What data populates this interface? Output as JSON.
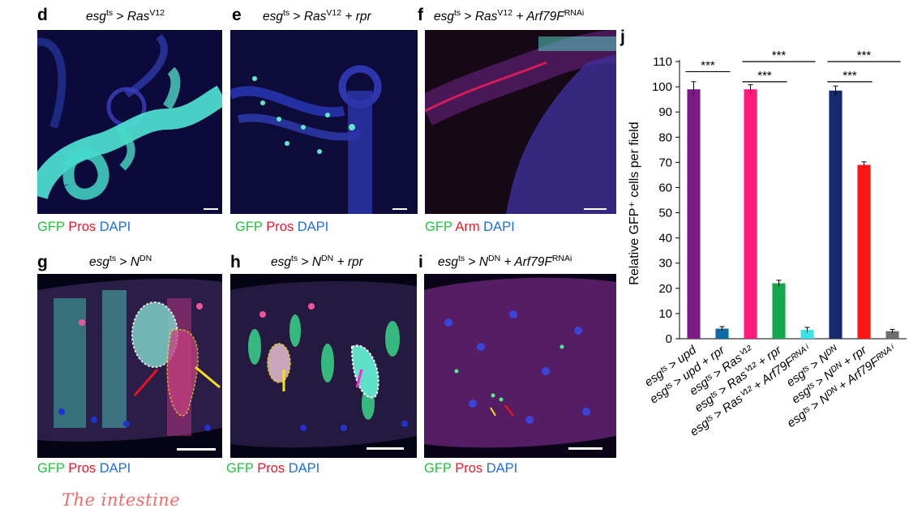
{
  "panels": [
    {
      "id": "d",
      "letter": "d",
      "title": {
        "gene": "esg",
        "gene_sup": "ts",
        "arrow": " > ",
        "construct": "Ras",
        "construct_sup": "V12",
        "extra": ""
      },
      "stains": [
        "GFP",
        "Pros",
        "DAPI"
      ]
    },
    {
      "id": "e",
      "letter": "e",
      "title": {
        "gene": "esg",
        "gene_sup": "ts",
        "arrow": " > ",
        "construct": "Ras",
        "construct_sup": "V12",
        "extra": " + rpr"
      },
      "stains": [
        "GFP",
        "Pros",
        "DAPI"
      ]
    },
    {
      "id": "f",
      "letter": "f",
      "title": {
        "gene": "esg",
        "gene_sup": "ts",
        "arrow": " > ",
        "construct": "Ras",
        "construct_sup": "V12",
        "extra": " + Arf79F",
        "extra_sup": "RNAi"
      },
      "stains": [
        "GFP",
        "Arm",
        "DAPI"
      ]
    },
    {
      "id": "g",
      "letter": "g",
      "title": {
        "gene": "esg",
        "gene_sup": "ts",
        "arrow": " > ",
        "construct": "N",
        "construct_sup": "DN",
        "extra": ""
      },
      "stains": [
        "GFP",
        "Pros",
        "DAPI"
      ]
    },
    {
      "id": "h",
      "letter": "h",
      "title": {
        "gene": "esg",
        "gene_sup": "ts",
        "arrow": " > ",
        "construct": "N",
        "construct_sup": "DN",
        "extra": " + rpr"
      },
      "stains": [
        "GFP",
        "Pros",
        "DAPI"
      ]
    },
    {
      "id": "i",
      "letter": "i",
      "title": {
        "gene": "esg",
        "gene_sup": "ts",
        "arrow": " > ",
        "construct": "N",
        "construct_sup": "DN",
        "extra": " + Arf79F",
        "extra_sup": "RNAi"
      },
      "stains": [
        "GFP",
        "Pros",
        "DAPI"
      ]
    }
  ],
  "handwritten_note": "The intestine",
  "colors": {
    "gfp": "#22c43a",
    "pros": "#e8192c",
    "dapi": "#1f6fdc"
  },
  "chart_data": {
    "type": "bar",
    "panel_letter": "j",
    "ylabel": "Relative GFP⁺ cells per field",
    "ylim": [
      0,
      110
    ],
    "yticks": [
      0,
      10,
      20,
      30,
      40,
      50,
      60,
      70,
      80,
      90,
      100,
      110
    ],
    "categories": [
      "esgᵗˢ > upd",
      "esgᵗˢ > upd + rpr",
      "esgᵗˢ > Rasⱽ¹²",
      "esgᵗˢ > Rasⱽ¹² + rpr",
      "esgᵗˢ > Rasⱽ¹² + Arf79Fᴿᴺᴬⁱ",
      "esgᵗˢ > Nᴰᴺ",
      "esgᵗˢ > Nᴰᴺ + rpr",
      "esgᵗˢ > Nᴰᴺ + Arf79Fᴿᴺᴬⁱ"
    ],
    "values": [
      99,
      4,
      99,
      22,
      3.5,
      98.5,
      69,
      3
    ],
    "errors": [
      3,
      0.8,
      1.8,
      1.2,
      1.0,
      1.8,
      1.2,
      0.7
    ],
    "bar_colors": [
      "#7e1a86",
      "#0f6aa8",
      "#ff1c7c",
      "#15a84f",
      "#3ee0e8",
      "#132a6e",
      "#ff1616",
      "#6e6e6e"
    ],
    "significance": [
      {
        "from": 0,
        "to": 1,
        "label": "***"
      },
      {
        "from": 2,
        "to": 3,
        "label": "***"
      },
      {
        "from": 2,
        "to": 4,
        "label": "***"
      },
      {
        "from": 5,
        "to": 6,
        "label": "***"
      },
      {
        "from": 5,
        "to": 7,
        "label": "***"
      }
    ]
  }
}
